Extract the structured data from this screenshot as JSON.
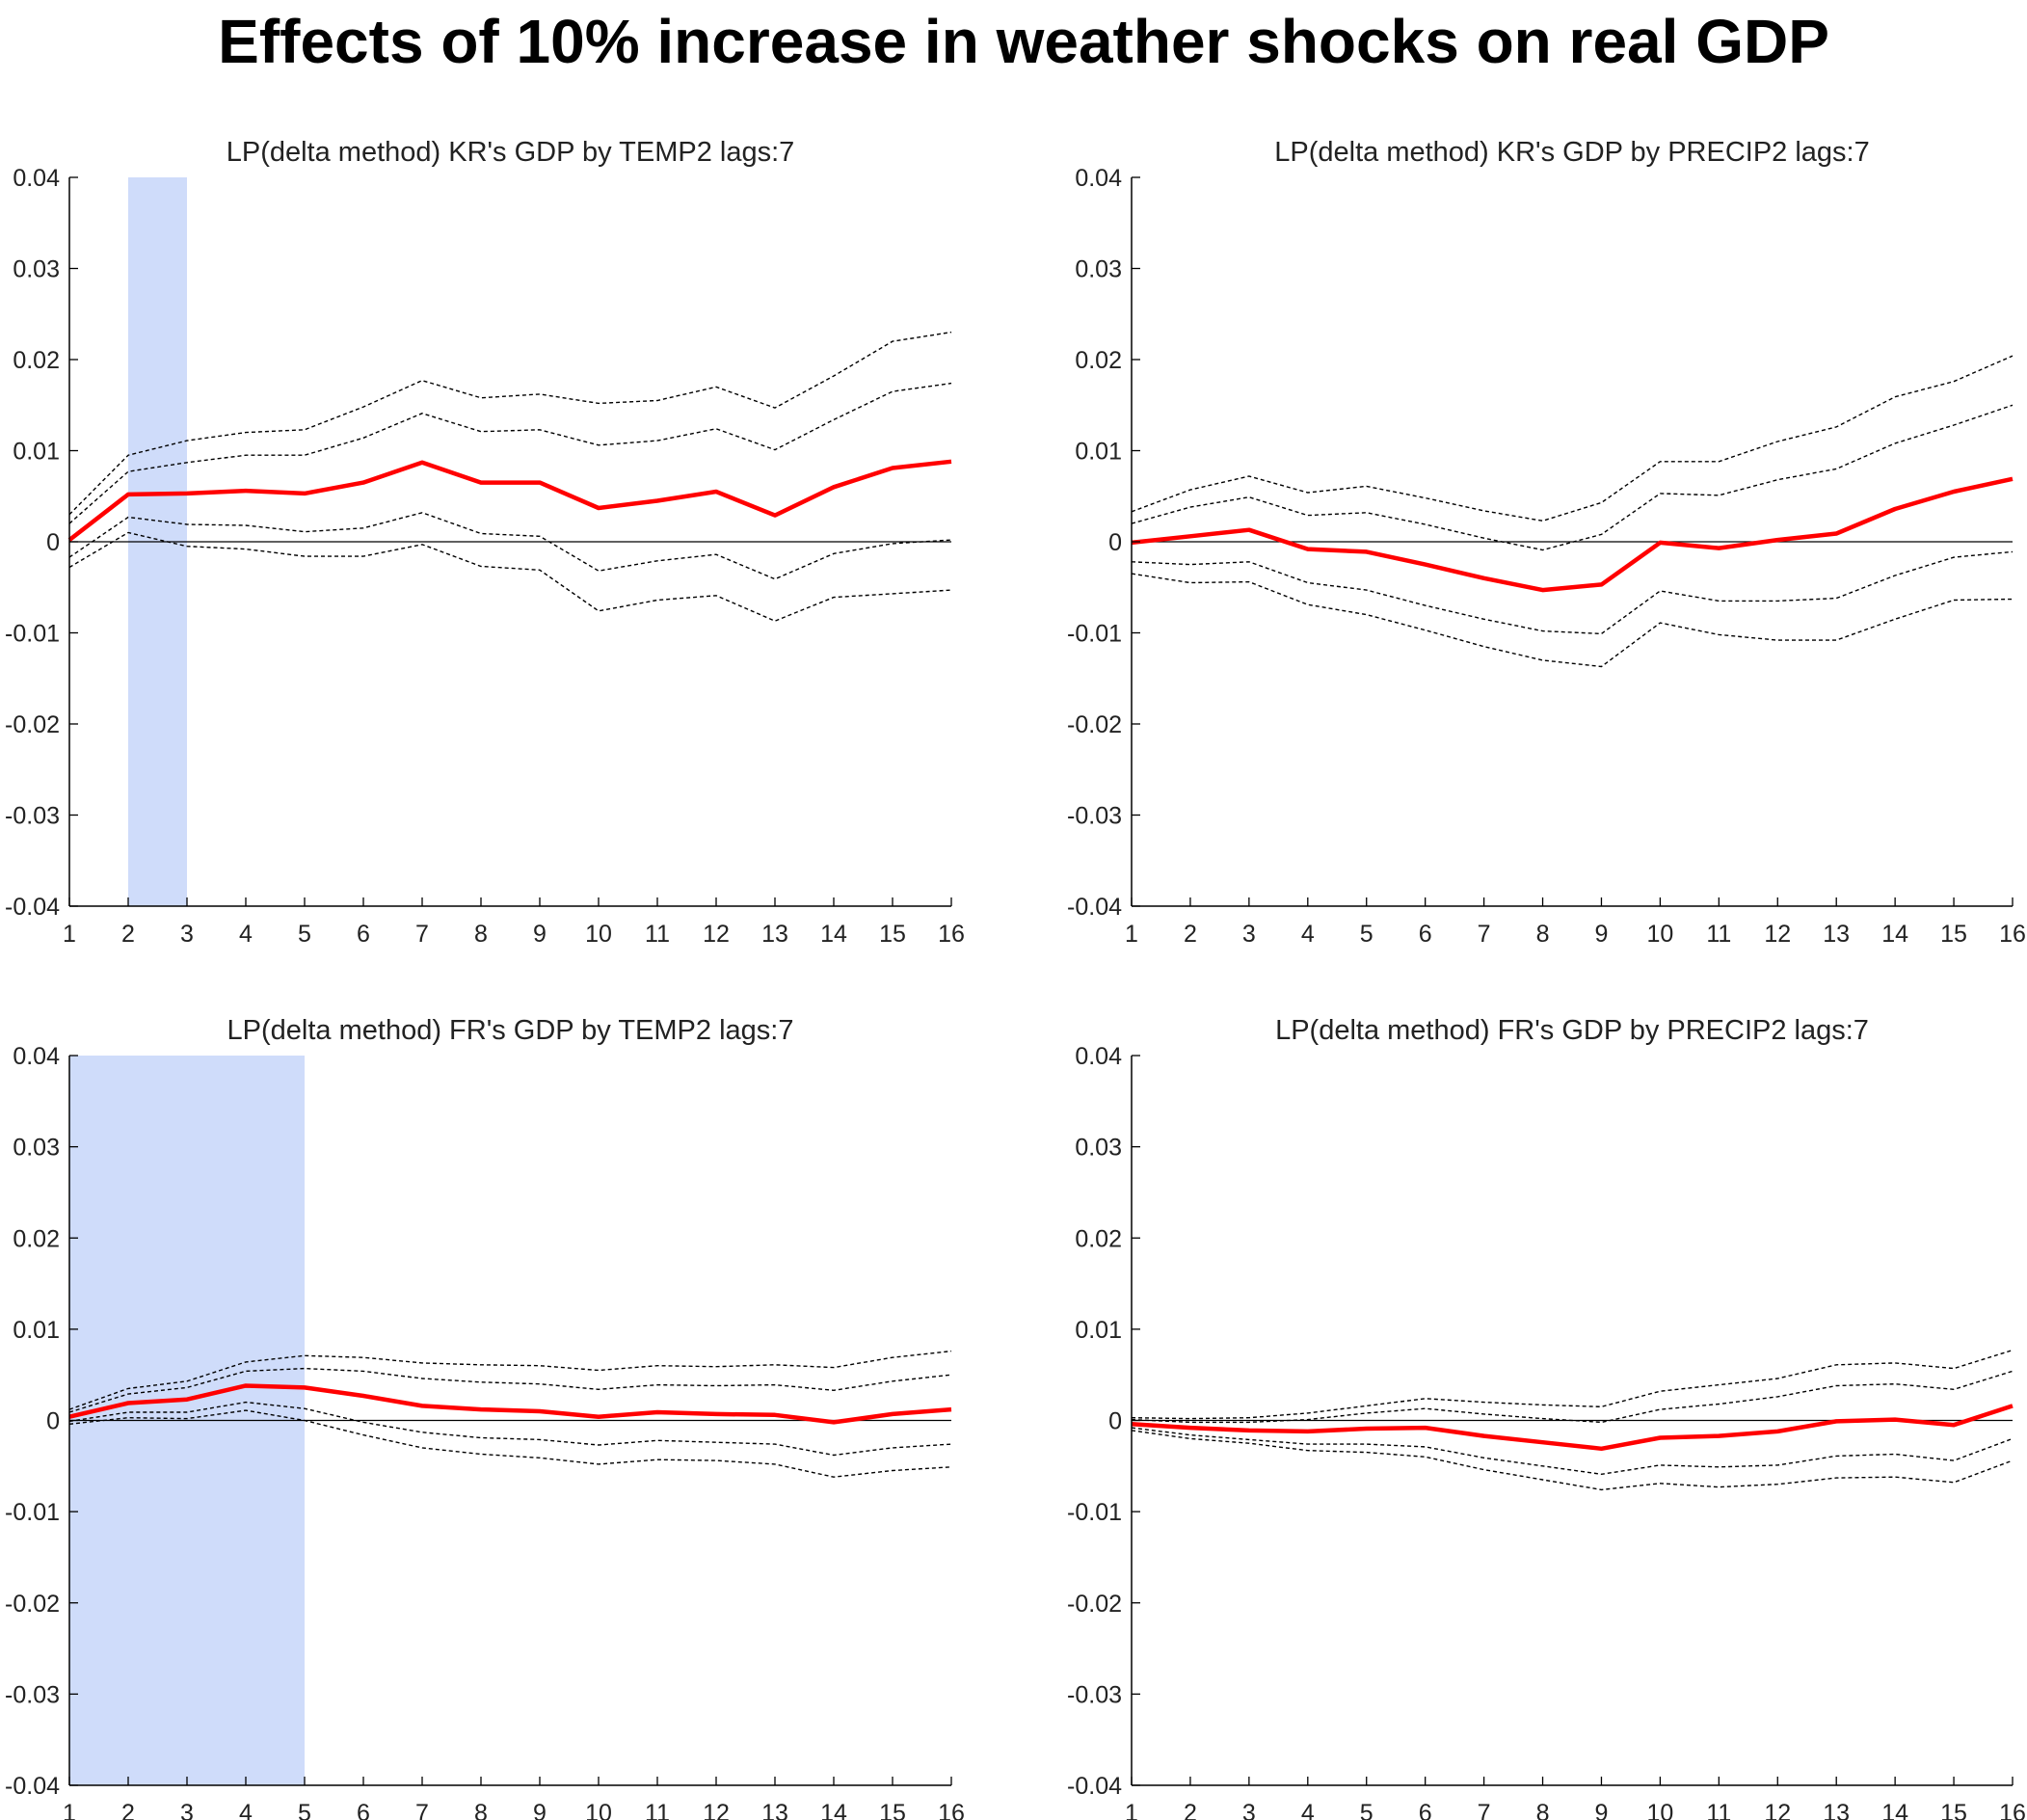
{
  "figure_title": "Effects of 10% increase in weather shocks on real GDP",
  "colors": {
    "irf": "#ff0000",
    "band": "#000000",
    "shade": "#cfdcfa",
    "axis": "#000000",
    "zero": "#000000"
  },
  "chart_data": [
    {
      "type": "line",
      "title": "LP(delta method) KR's GDP by TEMP2 lags:7",
      "x": [
        1,
        2,
        3,
        4,
        5,
        6,
        7,
        8,
        9,
        10,
        11,
        12,
        13,
        14,
        15,
        16
      ],
      "xlim": [
        1,
        16
      ],
      "ylim": [
        -0.04,
        0.04
      ],
      "xticks": [
        1,
        2,
        3,
        4,
        5,
        6,
        7,
        8,
        9,
        10,
        11,
        12,
        13,
        14,
        15,
        16
      ],
      "yticks": [
        -0.04,
        -0.03,
        -0.02,
        -0.01,
        0,
        0.01,
        0.02,
        0.03,
        0.04
      ],
      "ytick_labels": [
        "-0.04",
        "-0.03",
        "-0.02",
        "-0.01",
        "0",
        "0.01",
        "0.02",
        "0.03",
        "0.04"
      ],
      "shaded_x": [
        2,
        3
      ],
      "zero_line": true,
      "estimate": [
        0.0002,
        0.0052,
        0.0053,
        0.0056,
        0.0053,
        0.0065,
        0.0087,
        0.0065,
        0.0065,
        0.0037,
        0.0045,
        0.0055,
        0.0029,
        0.006,
        0.0081,
        0.0088
      ],
      "bands": [
        [
          0.003,
          0.0095,
          0.0111,
          0.012,
          0.0123,
          0.0148,
          0.0177,
          0.0158,
          0.0162,
          0.0152,
          0.0155,
          0.017,
          0.0147,
          0.0182,
          0.022,
          0.023
        ],
        [
          0.002,
          0.0077,
          0.0087,
          0.0095,
          0.0095,
          0.0114,
          0.0141,
          0.0121,
          0.0123,
          0.0106,
          0.0111,
          0.0124,
          0.0101,
          0.0134,
          0.0165,
          0.0174
        ],
        [
          -0.0017,
          0.0027,
          0.0019,
          0.0018,
          0.0011,
          0.0015,
          0.0032,
          0.0009,
          0.0006,
          -0.0032,
          -0.0021,
          -0.0014,
          -0.0041,
          -0.0013,
          -0.0002,
          0.0002
        ],
        [
          -0.0028,
          0.001,
          -0.0005,
          -0.0008,
          -0.0016,
          -0.0016,
          -0.0003,
          -0.0027,
          -0.0031,
          -0.0076,
          -0.0064,
          -0.0059,
          -0.0087,
          -0.0061,
          -0.0057,
          -0.0053
        ]
      ]
    },
    {
      "type": "line",
      "title": "LP(delta method) KR's GDP by PRECIP2 lags:7",
      "x": [
        1,
        2,
        3,
        4,
        5,
        6,
        7,
        8,
        9,
        10,
        11,
        12,
        13,
        14,
        15,
        16
      ],
      "xlim": [
        1,
        16
      ],
      "ylim": [
        -0.04,
        0.04
      ],
      "xticks": [
        1,
        2,
        3,
        4,
        5,
        6,
        7,
        8,
        9,
        10,
        11,
        12,
        13,
        14,
        15,
        16
      ],
      "yticks": [
        -0.04,
        -0.03,
        -0.02,
        -0.01,
        0,
        0.01,
        0.02,
        0.03,
        0.04
      ],
      "ytick_labels": [
        "-0.04",
        "-0.03",
        "-0.02",
        "-0.01",
        "0",
        "0.01",
        "0.02",
        "0.03",
        "0.04"
      ],
      "shaded_x": null,
      "zero_line": true,
      "estimate": [
        -0.0001,
        0.0006,
        0.0013,
        -0.0008,
        -0.0011,
        -0.0025,
        -0.004,
        -0.0053,
        -0.0047,
        -0.0001,
        -0.0007,
        0.0002,
        0.0009,
        0.0036,
        0.0055,
        0.0069
      ],
      "bands": [
        [
          0.0033,
          0.0057,
          0.0072,
          0.0054,
          0.0061,
          0.0048,
          0.0034,
          0.0023,
          0.0043,
          0.0088,
          0.0088,
          0.011,
          0.0126,
          0.0159,
          0.0176,
          0.0204
        ],
        [
          0.002,
          0.0038,
          0.0049,
          0.0029,
          0.0032,
          0.0019,
          0.0004,
          -0.0009,
          0.0008,
          0.0053,
          0.0051,
          0.0068,
          0.008,
          0.0108,
          0.0128,
          0.015
        ],
        [
          -0.0022,
          -0.0025,
          -0.0022,
          -0.0045,
          -0.0053,
          -0.007,
          -0.0085,
          -0.0098,
          -0.0101,
          -0.0054,
          -0.0065,
          -0.0065,
          -0.0062,
          -0.0037,
          -0.0017,
          -0.0011
        ],
        [
          -0.0035,
          -0.0045,
          -0.0044,
          -0.0069,
          -0.008,
          -0.0097,
          -0.0115,
          -0.013,
          -0.0137,
          -0.0089,
          -0.0102,
          -0.0108,
          -0.0108,
          -0.0085,
          -0.0064,
          -0.0063
        ]
      ]
    },
    {
      "type": "line",
      "title": "LP(delta method) FR's GDP by TEMP2 lags:7",
      "x": [
        1,
        2,
        3,
        4,
        5,
        6,
        7,
        8,
        9,
        10,
        11,
        12,
        13,
        14,
        15,
        16
      ],
      "xlim": [
        1,
        16
      ],
      "ylim": [
        -0.04,
        0.04
      ],
      "xticks": [
        1,
        2,
        3,
        4,
        5,
        6,
        7,
        8,
        9,
        10,
        11,
        12,
        13,
        14,
        15,
        16
      ],
      "yticks": [
        -0.04,
        -0.03,
        -0.02,
        -0.01,
        0,
        0.01,
        0.02,
        0.03,
        0.04
      ],
      "ytick_labels": [
        "-0.04",
        "-0.03",
        "-0.02",
        "-0.01",
        "0",
        "0.01",
        "0.02",
        "0.03",
        "0.04"
      ],
      "shaded_x": [
        1,
        5
      ],
      "zero_line": true,
      "estimate": [
        0.0004,
        0.0019,
        0.0023,
        0.0038,
        0.0036,
        0.0027,
        0.0016,
        0.0012,
        0.001,
        0.0004,
        0.0009,
        0.0007,
        0.0006,
        -0.0002,
        0.0007,
        0.0012
      ],
      "bands": [
        [
          0.0012,
          0.0035,
          0.0043,
          0.0064,
          0.0071,
          0.0069,
          0.0063,
          0.0061,
          0.006,
          0.0055,
          0.006,
          0.0059,
          0.0061,
          0.0058,
          0.0069,
          0.0076
        ],
        [
          0.0009,
          0.0029,
          0.0036,
          0.0054,
          0.0057,
          0.0054,
          0.0046,
          0.0042,
          0.004,
          0.0034,
          0.0039,
          0.0038,
          0.0039,
          0.0033,
          0.0043,
          0.005
        ],
        [
          -0.0001,
          0.0009,
          0.0009,
          0.002,
          0.0013,
          -0.0002,
          -0.0013,
          -0.0019,
          -0.0021,
          -0.0027,
          -0.0022,
          -0.0024,
          -0.0026,
          -0.0038,
          -0.003,
          -0.0026
        ],
        [
          -0.0004,
          0.0003,
          0.0002,
          0.0011,
          0.0,
          -0.0016,
          -0.003,
          -0.0037,
          -0.0041,
          -0.0048,
          -0.0043,
          -0.0044,
          -0.0048,
          -0.0062,
          -0.0055,
          -0.0051
        ]
      ]
    },
    {
      "type": "line",
      "title": "LP(delta method) FR's GDP by PRECIP2 lags:7",
      "x": [
        1,
        2,
        3,
        4,
        5,
        6,
        7,
        8,
        9,
        10,
        11,
        12,
        13,
        14,
        15,
        16
      ],
      "xlim": [
        1,
        16
      ],
      "ylim": [
        -0.04,
        0.04
      ],
      "xticks": [
        1,
        2,
        3,
        4,
        5,
        6,
        7,
        8,
        9,
        10,
        11,
        12,
        13,
        14,
        15,
        16
      ],
      "yticks": [
        -0.04,
        -0.03,
        -0.02,
        -0.01,
        0,
        0.01,
        0.02,
        0.03,
        0.04
      ],
      "ytick_labels": [
        "-0.04",
        "-0.03",
        "-0.02",
        "-0.01",
        "0",
        "0.01",
        "0.02",
        "0.03",
        "0.04"
      ],
      "shaded_x": null,
      "zero_line": true,
      "estimate": [
        -0.0004,
        -0.0008,
        -0.0011,
        -0.0012,
        -0.0009,
        -0.0008,
        -0.0017,
        -0.0024,
        -0.0031,
        -0.0019,
        -0.0017,
        -0.0012,
        -0.0001,
        0.0001,
        -0.0005,
        0.0016
      ],
      "bands": [
        [
          0.0003,
          0.0002,
          0.0003,
          0.0008,
          0.0016,
          0.0024,
          0.002,
          0.0017,
          0.0015,
          0.0032,
          0.0039,
          0.0046,
          0.0061,
          0.0063,
          0.0057,
          0.0077
        ],
        [
          0.0001,
          -0.0002,
          -0.0002,
          0.0001,
          0.0008,
          0.0013,
          0.0007,
          0.0002,
          -0.0002,
          0.0012,
          0.0018,
          0.0026,
          0.0038,
          0.004,
          0.0034,
          0.0054
        ],
        [
          -0.0008,
          -0.0016,
          -0.0021,
          -0.0026,
          -0.0026,
          -0.0029,
          -0.0041,
          -0.005,
          -0.0059,
          -0.0049,
          -0.0051,
          -0.0049,
          -0.0039,
          -0.0037,
          -0.0044,
          -0.002
        ],
        [
          -0.0011,
          -0.002,
          -0.0025,
          -0.0033,
          -0.0035,
          -0.004,
          -0.0054,
          -0.0065,
          -0.0076,
          -0.0069,
          -0.0073,
          -0.007,
          -0.0063,
          -0.0062,
          -0.0068,
          -0.0044
        ]
      ]
    }
  ]
}
